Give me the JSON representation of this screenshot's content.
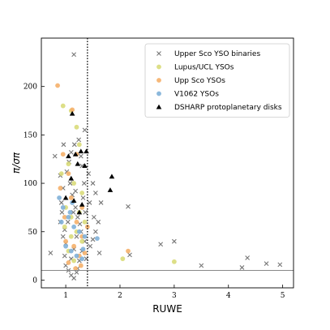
{
  "chart_data": {
    "type": "scatter",
    "xlabel": "RUWE",
    "ylabel": "π/σπ",
    "xlim": [
      0.55,
      5.2
    ],
    "ylim": [
      -8,
      250
    ],
    "x_ticks": [
      1,
      2,
      3,
      4,
      5
    ],
    "y_ticks": [
      0,
      50,
      100,
      150,
      200
    ],
    "grid": false,
    "legend_position": "top-right",
    "reference_lines": [
      {
        "orientation": "vertical",
        "value": 1.4,
        "style": "dotted",
        "color": "#000000"
      },
      {
        "orientation": "horizontal",
        "value": 10,
        "style": "solid",
        "color": "#888888"
      }
    ],
    "series": [
      {
        "name": "Upper Sco YSO binaries",
        "marker": "x",
        "color": "#777777",
        "points": [
          [
            1.15,
            233
          ],
          [
            0.8,
            128
          ],
          [
            1.35,
            155
          ],
          [
            0.72,
            28
          ],
          [
            2.15,
            76
          ],
          [
            2.75,
            37
          ],
          [
            3.0,
            40
          ],
          [
            3.5,
            15
          ],
          [
            4.25,
            13
          ],
          [
            4.35,
            23
          ],
          [
            4.7,
            17
          ],
          [
            4.95,
            16
          ],
          [
            2.18,
            26
          ],
          [
            1.5,
            100
          ],
          [
            1.55,
            90
          ],
          [
            1.65,
            80
          ],
          [
            1.6,
            60
          ],
          [
            1.55,
            50
          ],
          [
            1.5,
            42
          ],
          [
            1.45,
            35
          ],
          [
            1.62,
            28
          ],
          [
            1.52,
            65
          ],
          [
            0.9,
            108
          ],
          [
            0.95,
            95
          ],
          [
            0.92,
            80
          ],
          [
            0.9,
            60
          ],
          [
            0.95,
            45
          ],
          [
            0.98,
            25
          ],
          [
            1.0,
            15
          ],
          [
            1.05,
            10
          ],
          [
            1.1,
            5
          ],
          [
            1.15,
            2
          ],
          [
            1.2,
            8
          ],
          [
            1.25,
            20
          ],
          [
            1.3,
            30
          ],
          [
            1.35,
            40
          ],
          [
            1.28,
            50
          ],
          [
            1.22,
            65
          ],
          [
            1.18,
            75
          ],
          [
            1.12,
            88
          ],
          [
            1.08,
            100
          ],
          [
            1.02,
            112
          ],
          [
            1.06,
            122
          ],
          [
            1.1,
            132
          ],
          [
            1.16,
            140
          ],
          [
            1.24,
            145
          ],
          [
            1.3,
            118
          ],
          [
            1.34,
            100
          ],
          [
            1.32,
            85
          ],
          [
            1.26,
            58
          ],
          [
            1.2,
            45
          ],
          [
            1.15,
            32
          ],
          [
            1.1,
            22
          ],
          [
            0.98,
            52
          ],
          [
            0.93,
            70
          ],
          [
            1.0,
            38
          ],
          [
            1.04,
            60
          ],
          [
            1.14,
            70
          ],
          [
            1.36,
            70
          ],
          [
            1.38,
            22
          ],
          [
            1.22,
            12
          ],
          [
            1.18,
            92
          ],
          [
            1.28,
            128
          ],
          [
            0.96,
            140
          ],
          [
            1.42,
            110
          ],
          [
            1.44,
            80
          ]
        ]
      },
      {
        "name": "Lupus/UCL YSOs",
        "marker": "circle",
        "color": "#d9dc7a",
        "points": [
          [
            0.95,
            180
          ],
          [
            1.1,
            175
          ],
          [
            1.2,
            158
          ],
          [
            1.25,
            140
          ],
          [
            1.05,
            120
          ],
          [
            1.15,
            100
          ],
          [
            1.3,
            90
          ],
          [
            1.0,
            75
          ],
          [
            1.1,
            65
          ],
          [
            1.2,
            50
          ],
          [
            1.3,
            40
          ],
          [
            1.05,
            30
          ],
          [
            1.15,
            20
          ],
          [
            2.05,
            22
          ],
          [
            3.0,
            19
          ],
          [
            0.92,
            110
          ],
          [
            1.25,
            70
          ],
          [
            0.98,
            55
          ],
          [
            1.35,
            60
          ],
          [
            1.1,
            45
          ]
        ]
      },
      {
        "name": "Upp Sco YSOs",
        "marker": "circle",
        "color": "#f5b06a",
        "points": [
          [
            0.85,
            201
          ],
          [
            1.12,
            176
          ],
          [
            0.95,
            130
          ],
          [
            1.05,
            110
          ],
          [
            1.1,
            85
          ],
          [
            1.2,
            60
          ],
          [
            1.3,
            45
          ],
          [
            1.0,
            40
          ],
          [
            1.15,
            35
          ],
          [
            1.25,
            25
          ],
          [
            1.35,
            28
          ],
          [
            2.15,
            30
          ],
          [
            1.05,
            18
          ],
          [
            0.9,
            95
          ],
          [
            1.2,
            130
          ],
          [
            1.3,
            75
          ],
          [
            0.98,
            65
          ],
          [
            1.4,
            55
          ],
          [
            1.18,
            12
          ],
          [
            1.28,
            15
          ]
        ]
      },
      {
        "name": "V1062 YSOs",
        "marker": "circle",
        "color": "#7fb0d8",
        "points": [
          [
            0.88,
            85
          ],
          [
            0.95,
            75
          ],
          [
            1.05,
            65
          ],
          [
            1.15,
            55
          ],
          [
            1.25,
            50
          ],
          [
            1.35,
            45
          ],
          [
            1.0,
            35
          ],
          [
            1.1,
            30
          ],
          [
            1.2,
            25
          ],
          [
            1.3,
            22
          ],
          [
            0.92,
            60
          ],
          [
            1.12,
            80
          ],
          [
            1.58,
            43
          ],
          [
            1.08,
            70
          ],
          [
            1.32,
            32
          ]
        ]
      },
      {
        "name": "DSHARP protoplanetary disks",
        "marker": "triangle",
        "color": "#000000",
        "points": [
          [
            1.12,
            172
          ],
          [
            1.28,
            133
          ],
          [
            1.38,
            133
          ],
          [
            1.05,
            128
          ],
          [
            1.18,
            130
          ],
          [
            1.22,
            120
          ],
          [
            1.35,
            118
          ],
          [
            1.1,
            105
          ],
          [
            1.85,
            107
          ],
          [
            1.82,
            93
          ],
          [
            1.0,
            85
          ],
          [
            1.15,
            82
          ],
          [
            1.3,
            78
          ],
          [
            1.25,
            70
          ]
        ]
      }
    ]
  }
}
